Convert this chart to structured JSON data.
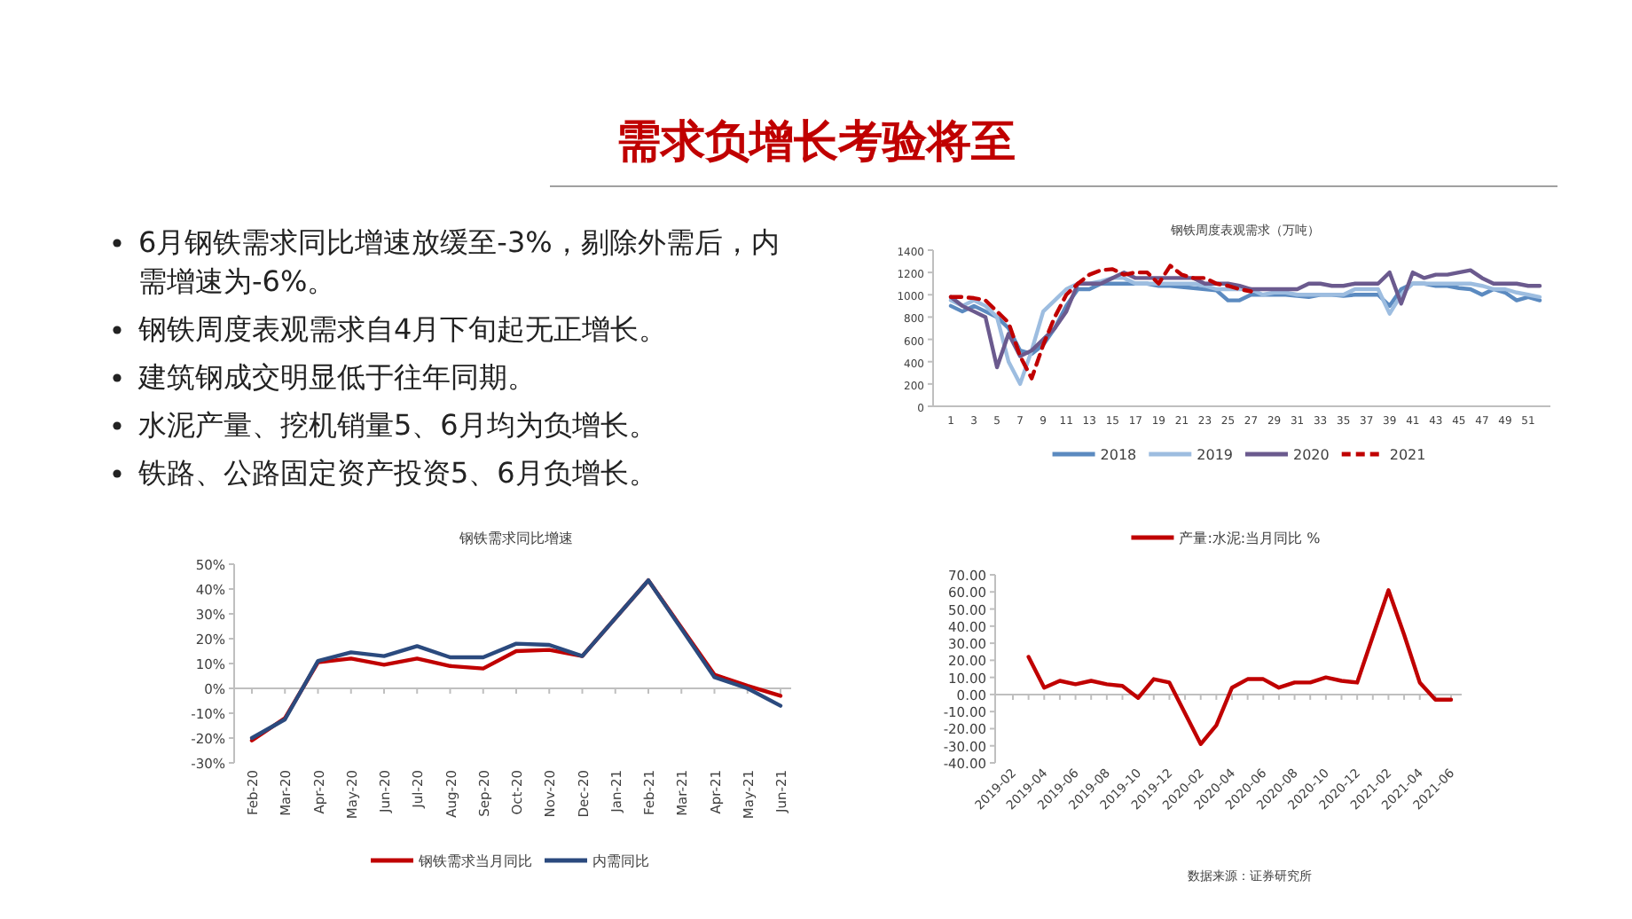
{
  "chart_data": [
    {
      "type": "other",
      "title": "需求负增长考验将至",
      "annotations": [
        "6月钢铁需求同比增速放缓至-3%，剔除外需后，内需增速为-6%。",
        "钢铁周度表观需求自4月下旬起无正增长。",
        "建筑钢成交明显低于往年同期。",
        "水泥产量、挖机销量5、6月均为负增长。",
        "铁路、公路固定资产投资5、6月负增长。"
      ]
    },
    {
      "type": "line",
      "title": "钢铁周度表观需求（万吨）",
      "categories": [
        "1",
        null,
        "3",
        null,
        "5",
        null,
        "7",
        null,
        "9",
        null,
        "11",
        null,
        "13",
        null,
        "15",
        null,
        "17",
        null,
        "19",
        null,
        "21",
        null,
        "23",
        null,
        "25",
        null,
        "27",
        null,
        "29",
        null,
        "31",
        null,
        "33",
        null,
        "35",
        null,
        "37",
        null,
        "39",
        null,
        "41",
        null,
        "43",
        null,
        "45",
        null,
        "47",
        null,
        "49",
        null,
        "51",
        null
      ],
      "ylim": [
        0,
        1400
      ],
      "yticks": [
        0,
        200,
        400,
        600,
        800,
        1000,
        1200,
        1400
      ],
      "legend": "bottom",
      "series": [
        {
          "name": "2018",
          "color": "#5b8ac0",
          "values": [
            900,
            850,
            900,
            850,
            800,
            700,
            500,
            470,
            550,
            700,
            900,
            1050,
            1050,
            1100,
            1100,
            1100,
            1100,
            1100,
            1080,
            1080,
            1070,
            1060,
            1050,
            1040,
            950,
            950,
            1000,
            1000,
            1000,
            1000,
            990,
            980,
            1000,
            1000,
            990,
            1000,
            1000,
            1000,
            900,
            1050,
            1100,
            1100,
            1080,
            1080,
            1060,
            1050,
            1000,
            1050,
            1020,
            950,
            980,
            950
          ]
        },
        {
          "name": "2019",
          "color": "#9dbde0",
          "values": [
            950,
            900,
            950,
            900,
            800,
            400,
            200,
            500,
            850,
            950,
            1050,
            1100,
            1100,
            1120,
            1150,
            1150,
            1100,
            1100,
            1100,
            1100,
            1100,
            1100,
            1080,
            1050,
            1050,
            1050,
            1050,
            1000,
            1020,
            1020,
            1000,
            1000,
            1000,
            1000,
            1000,
            1050,
            1050,
            1050,
            830,
            1000,
            1100,
            1100,
            1100,
            1100,
            1100,
            1100,
            1080,
            1050,
            1050,
            1020,
            1000,
            980
          ]
        },
        {
          "name": "2020",
          "color": "#6b5a8e",
          "values": [
            980,
            900,
            850,
            800,
            350,
            650,
            450,
            500,
            600,
            700,
            850,
            1100,
            1100,
            1100,
            1150,
            1200,
            1150,
            1150,
            1150,
            1150,
            1150,
            1150,
            1100,
            1100,
            1100,
            1080,
            1050,
            1050,
            1050,
            1050,
            1050,
            1100,
            1100,
            1080,
            1080,
            1100,
            1100,
            1100,
            1200,
            920,
            1200,
            1150,
            1180,
            1180,
            1200,
            1220,
            1150,
            1100,
            1100,
            1100,
            1080,
            1080
          ]
        },
        {
          "name": "2021",
          "color": "#c00000",
          "line_style": "dashed",
          "values": [
            980,
            980,
            970,
            950,
            850,
            750,
            450,
            250,
            550,
            800,
            1000,
            1100,
            1180,
            1220,
            1230,
            1180,
            1200,
            1200,
            1100,
            1260,
            1180,
            1150,
            1150,
            1100,
            1080,
            1050,
            1030,
            null,
            null,
            null,
            null,
            null,
            null,
            null,
            null,
            null,
            null,
            null,
            null,
            null,
            null,
            null,
            null,
            null,
            null,
            null,
            null,
            null,
            null,
            null,
            null,
            null
          ]
        }
      ]
    },
    {
      "type": "line",
      "title": "钢铁需求同比增速",
      "categories": [
        "Feb-20",
        "Mar-20",
        "Apr-20",
        "May-20",
        "Jun-20",
        "Jul-20",
        "Aug-20",
        "Sep-20",
        "Oct-20",
        "Nov-20",
        "Dec-20",
        "Jan-21",
        "Feb-21",
        "Mar-21",
        "Apr-21",
        "May-21",
        "Jun-21"
      ],
      "ylim": [
        -30,
        50
      ],
      "yticks": [
        {
          "value": -30,
          "label": "-30%"
        },
        {
          "value": -20,
          "label": "-20%"
        },
        {
          "value": -10,
          "label": "-10%"
        },
        {
          "value": 0,
          "label": "0%"
        },
        {
          "value": 10,
          "label": "10%"
        },
        {
          "value": 20,
          "label": "20%"
        },
        {
          "value": 30,
          "label": "30%"
        },
        {
          "value": 40,
          "label": "40%"
        },
        {
          "value": 50,
          "label": "50%"
        }
      ],
      "legend": "bottom",
      "series": [
        {
          "name": "钢铁需求当月同比",
          "color": "#c00000",
          "values": [
            -21,
            -12,
            10.5,
            12,
            9.5,
            12,
            9,
            8,
            15,
            15.5,
            13,
            null,
            43.5,
            null,
            5.5,
            1,
            -3
          ]
        },
        {
          "name": "内需同比",
          "color": "#2b4a7e",
          "values": [
            -20,
            -12.5,
            11,
            14.5,
            13,
            17,
            12.5,
            12.5,
            18,
            17.5,
            13,
            null,
            43.5,
            null,
            4.5,
            0,
            -7
          ]
        }
      ]
    },
    {
      "type": "line",
      "categories": [
        "2019-02",
        null,
        "2019-04",
        null,
        "2019-06",
        null,
        "2019-08",
        null,
        "2019-10",
        null,
        "2019-12",
        null,
        "2020-02",
        null,
        "2020-04",
        null,
        "2020-06",
        null,
        "2020-08",
        null,
        "2020-10",
        null,
        "2020-12",
        null,
        "2021-02",
        null,
        "2021-04",
        null,
        "2021-06"
      ],
      "ylim": [
        -40,
        70
      ],
      "yticks": [
        {
          "value": -40,
          "label": "-40.00"
        },
        {
          "value": -30,
          "label": "-30.00"
        },
        {
          "value": -20,
          "label": "-20.00"
        },
        {
          "value": -10,
          "label": "-10.00"
        },
        {
          "value": 0,
          "label": "0.00"
        },
        {
          "value": 10,
          "label": "10.00"
        },
        {
          "value": 20,
          "label": "20.00"
        },
        {
          "value": 30,
          "label": "30.00"
        },
        {
          "value": 40,
          "label": "40.00"
        },
        {
          "value": 50,
          "label": "50.00"
        },
        {
          "value": 60,
          "label": "60.00"
        },
        {
          "value": 70,
          "label": "70.00"
        }
      ],
      "legend": "top",
      "annotations": [
        "数据来源：证券研究所"
      ],
      "series": [
        {
          "name": "产量:水泥:当月同比 %",
          "color": "#c00000",
          "values": [
            null,
            22,
            4,
            8,
            6,
            8,
            6,
            5,
            -2,
            9,
            7,
            null,
            -29,
            -18,
            4,
            9,
            9,
            4,
            7,
            7,
            10,
            8,
            7,
            null,
            61,
            35,
            7,
            -3,
            -3
          ]
        }
      ]
    }
  ]
}
